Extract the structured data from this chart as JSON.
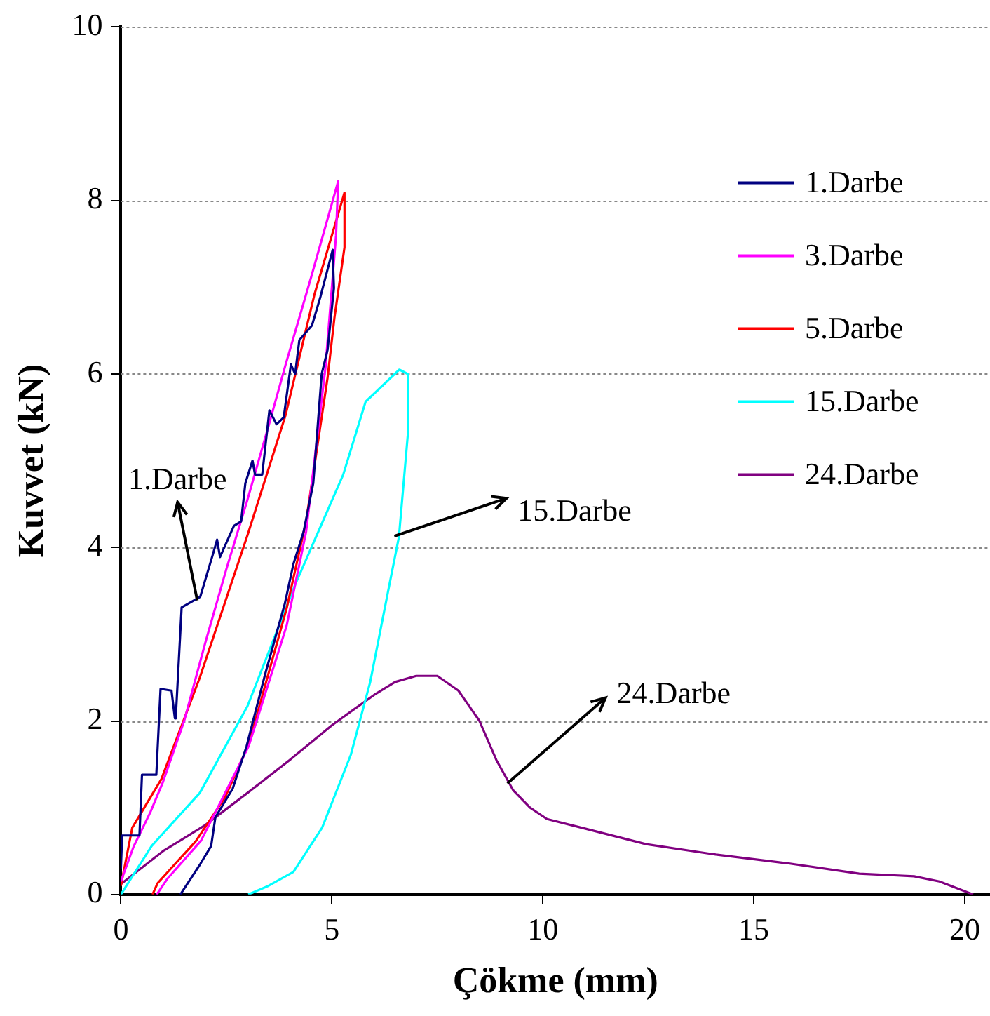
{
  "chart_data": {
    "type": "line",
    "xlabel": "Çökme (mm)",
    "ylabel": "Kuvvet (kN)",
    "xlim": [
      0,
      20.6
    ],
    "xticks": [
      0,
      5,
      10,
      15,
      20
    ],
    "ylim": [
      0,
      10
    ],
    "yticks": [
      0,
      2,
      4,
      6,
      8,
      10
    ],
    "grid": "y",
    "legend": "right",
    "marker": "none",
    "line_style": "solid",
    "series": [
      {
        "name": "1.Darbe",
        "color": "#000080",
        "x": [
          0,
          0.03,
          0.44,
          0.5,
          0.84,
          0.94,
          1.2,
          1.28,
          1.3,
          1.44,
          1.88,
          2.18,
          2.28,
          2.35,
          2.68,
          2.85,
          2.95,
          3.12,
          3.18,
          3.35,
          3.52,
          3.69,
          3.86,
          4.03,
          4.13,
          4.23,
          4.53,
          4.73,
          5.02,
          5.05,
          4.9,
          4.76,
          4.56,
          4.33,
          4.09,
          3.89,
          3.42,
          2.98,
          2.65,
          2.24,
          2.14,
          1.88,
          1.41
        ],
        "values": [
          0.3,
          0.68,
          0.68,
          1.38,
          1.38,
          2.37,
          2.35,
          2.03,
          2.03,
          3.31,
          3.43,
          3.92,
          4.09,
          3.89,
          4.25,
          4.3,
          4.74,
          5.0,
          4.84,
          4.84,
          5.58,
          5.42,
          5.5,
          6.11,
          6.0,
          6.39,
          6.56,
          6.89,
          7.43,
          6.99,
          6.28,
          6.0,
          4.74,
          4.18,
          3.81,
          3.36,
          2.54,
          1.71,
          1.22,
          0.89,
          0.56,
          0.35,
          0
        ]
      },
      {
        "name": "3.Darbe",
        "color": "#ff00ff",
        "x": [
          0,
          0.3,
          0.7,
          1.0,
          1.5,
          2.0,
          2.5,
          3.0,
          3.5,
          3.9,
          4.5,
          5.15,
          5.1,
          4.85,
          4.39,
          3.93,
          3.03,
          1.9,
          1.1,
          0.85
        ],
        "values": [
          0.15,
          0.55,
          0.95,
          1.3,
          2.0,
          2.9,
          3.75,
          4.55,
          5.4,
          6.1,
          7.1,
          8.22,
          7.6,
          6.08,
          4.18,
          3.1,
          1.71,
          0.62,
          0.18,
          0
        ]
      },
      {
        "name": "5.Darbe",
        "color": "#ff0000",
        "x": [
          0,
          0.27,
          0.96,
          1.87,
          3.0,
          3.9,
          4.59,
          5.3,
          5.3,
          5.06,
          4.9,
          4.39,
          3.93,
          3.03,
          2.47,
          1.77,
          0.87,
          0.75
        ],
        "values": [
          0.1,
          0.77,
          1.33,
          2.5,
          4.14,
          5.52,
          6.92,
          8.09,
          7.46,
          6.64,
          5.96,
          4.3,
          3.3,
          1.73,
          1.12,
          0.61,
          0.13,
          0
        ]
      },
      {
        "name": "15.Darbe",
        "color": "#00ffff",
        "x": [
          0,
          0.73,
          1.87,
          3.0,
          4.13,
          5.27,
          5.8,
          6.6,
          6.8,
          6.81,
          6.59,
          6.36,
          5.91,
          5.45,
          4.77,
          4.09,
          3.5,
          3.02
        ],
        "values": [
          0,
          0.56,
          1.17,
          2.17,
          3.57,
          4.84,
          5.68,
          6.05,
          6.0,
          5.35,
          4.12,
          3.56,
          2.45,
          1.61,
          0.77,
          0.26,
          0.1,
          0
        ]
      },
      {
        "name": "24.Darbe",
        "color": "#800080",
        "x": [
          0,
          1,
          2,
          3,
          4,
          5,
          6,
          6.5,
          7,
          7.5,
          8,
          8.5,
          8.9,
          9.3,
          9.7,
          10.1,
          11,
          12.45,
          14.1,
          15.8,
          17.5,
          18.8,
          19.4,
          20.2
        ],
        "values": [
          0.12,
          0.5,
          0.8,
          1.17,
          1.55,
          1.95,
          2.3,
          2.45,
          2.52,
          2.52,
          2.35,
          2.0,
          1.55,
          1.2,
          1.0,
          0.87,
          0.76,
          0.58,
          0.46,
          0.36,
          0.24,
          0.21,
          0.15,
          0
        ]
      }
    ],
    "annotations": [
      {
        "text": "1.Darbe",
        "x": 1.81,
        "y": 3.39
      },
      {
        "text": "15.Darbe",
        "x": 6.48,
        "y": 4.13
      },
      {
        "text": "24.Darbe",
        "x": 9.16,
        "y": 1.28
      }
    ]
  }
}
